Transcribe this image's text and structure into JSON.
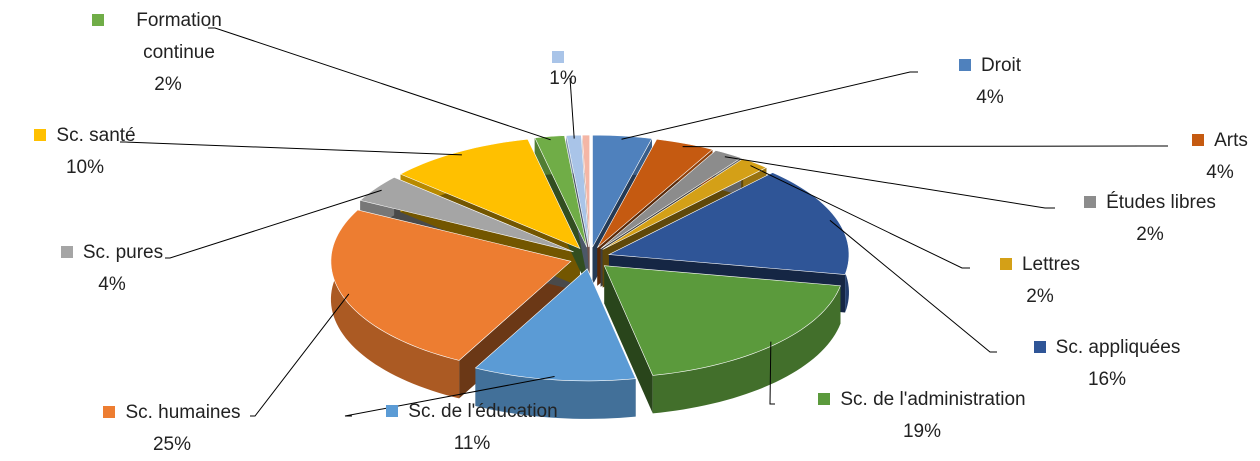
{
  "chart_data": {
    "type": "pie3d",
    "categories": [
      "Droit",
      "Arts",
      "Études libres",
      "Lettres",
      "Sc. appliquées",
      "Sc. de l'administration",
      "Sc. de l'éducation",
      "Sc. humaines",
      "Sc. pures",
      "Sc. santé",
      "Formation continue",
      null,
      null
    ],
    "values": [
      4,
      4,
      2,
      2,
      16,
      19,
      11,
      25,
      4,
      10,
      2,
      1,
      0.5
    ],
    "value_labels": [
      "4%",
      "4%",
      "2%",
      "2%",
      "16%",
      "19%",
      "11%",
      "25%",
      "4%",
      "10%",
      "2%",
      "1%",
      null
    ],
    "colors": [
      "#4f81bd",
      "#c55a11",
      "#8c8c8c",
      "#d4a017",
      "#2f5597",
      "#5b9a3c",
      "#5b9bd5",
      "#ed7d31",
      "#a5a5a5",
      "#ffc000",
      "#70ad47",
      "#a9c4e8",
      "#f4b6a6"
    ]
  }
}
